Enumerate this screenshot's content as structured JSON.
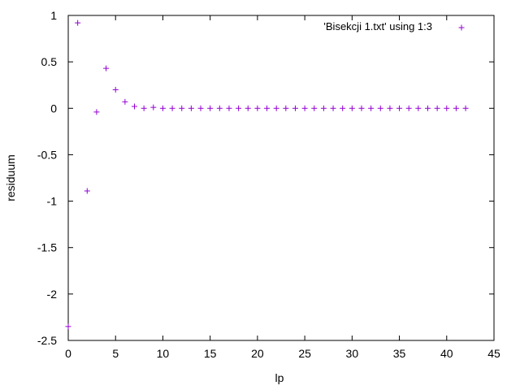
{
  "chart_data": {
    "type": "scatter",
    "title": "",
    "xlabel": "lp",
    "ylabel": "residuum",
    "xlim": [
      0,
      45
    ],
    "ylim": [
      -2.5,
      1
    ],
    "xticks": [
      0,
      5,
      10,
      15,
      20,
      25,
      30,
      35,
      40,
      45
    ],
    "yticks": [
      -2.5,
      -2,
      -1.5,
      -1,
      -0.5,
      0,
      0.5,
      1
    ],
    "grid": false,
    "legend_position": "top-right",
    "marker": "plus",
    "series": [
      {
        "name": "'Bisekcji 1.txt' using 1:3",
        "color": "#9400d3",
        "x": [
          0,
          1,
          2,
          3,
          4,
          5,
          6,
          7,
          8,
          9,
          10,
          11,
          12,
          13,
          14,
          15,
          16,
          17,
          18,
          19,
          20,
          21,
          22,
          23,
          24,
          25,
          26,
          27,
          28,
          29,
          30,
          31,
          32,
          33,
          34,
          35,
          36,
          37,
          38,
          39,
          40,
          41,
          42
        ],
        "y": [
          -2.35,
          0.92,
          -0.89,
          -0.04,
          0.43,
          0.2,
          0.07,
          0.02,
          0,
          0.01,
          0,
          0,
          0,
          0,
          0,
          0,
          0,
          0,
          0,
          0,
          0,
          0,
          0,
          0,
          0,
          0,
          0,
          0,
          0,
          0,
          0,
          0,
          0,
          0,
          0,
          0,
          0,
          0,
          0,
          0,
          0,
          0,
          0
        ]
      }
    ]
  }
}
